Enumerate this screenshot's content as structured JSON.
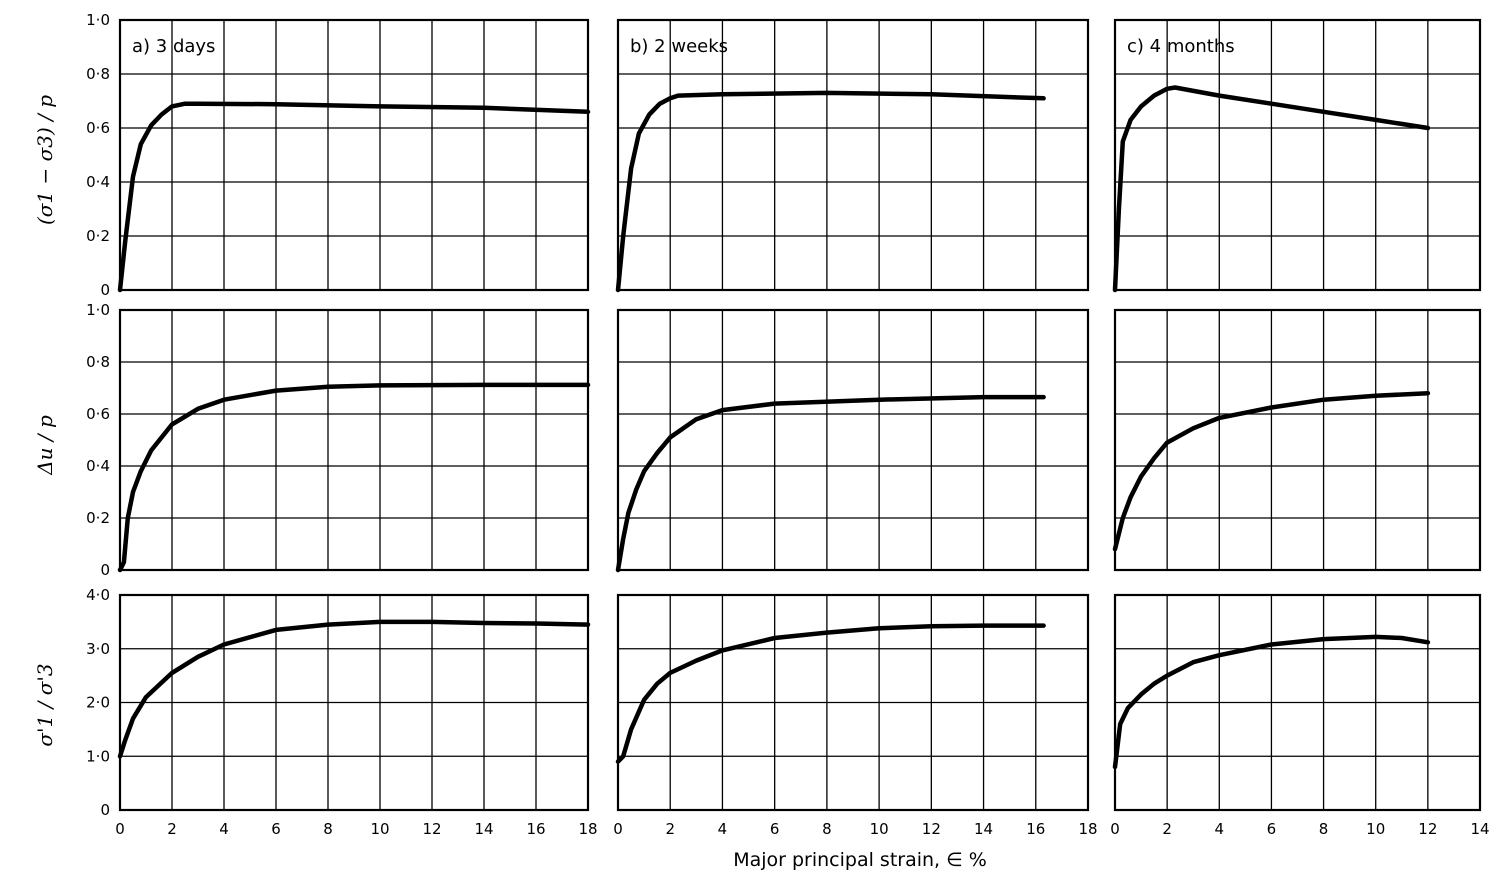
{
  "figure": {
    "xlabel": "Major principal strain, ∈ %",
    "row_labels": [
      "(σ1 − σ3) / p",
      "Δu / p",
      "σ'1 / σ'3"
    ],
    "column_titles": [
      "a)  3 days",
      "b)  2 weeks",
      "c)  4 months"
    ]
  },
  "chart_data": [
    {
      "type": "line",
      "row": 0,
      "col": 0,
      "title": "a)  3 days",
      "ylabel": "(σ1 − σ3) / p",
      "xlabel": "",
      "xlim": [
        0,
        18
      ],
      "ylim": [
        0,
        1.0
      ],
      "x_ticks": [
        0,
        2,
        4,
        6,
        8,
        10,
        12,
        14,
        16,
        18
      ],
      "y_ticks": [
        0,
        0.2,
        0.4,
        0.6,
        0.8,
        1.0
      ],
      "y_tick_labels": [
        "0",
        "0·2",
        "0·4",
        "0·6",
        "0·8",
        "1·0"
      ],
      "grid": true,
      "series": [
        {
          "x": [
            0,
            0.2,
            0.5,
            0.8,
            1.2,
            1.6,
            2.0,
            2.5,
            3,
            6,
            10,
            14,
            18
          ],
          "y": [
            0,
            0.18,
            0.42,
            0.54,
            0.61,
            0.65,
            0.68,
            0.69,
            0.69,
            0.688,
            0.68,
            0.675,
            0.66
          ]
        }
      ]
    },
    {
      "type": "line",
      "row": 0,
      "col": 1,
      "title": "b)  2 weeks",
      "ylabel": "",
      "xlabel": "",
      "xlim": [
        0,
        18
      ],
      "ylim": [
        0,
        1.0
      ],
      "x_ticks": [
        0,
        2,
        4,
        6,
        8,
        10,
        12,
        14,
        16,
        18
      ],
      "y_ticks": [
        0,
        0.2,
        0.4,
        0.6,
        0.8,
        1.0
      ],
      "y_tick_labels": [],
      "grid": true,
      "series": [
        {
          "x": [
            0,
            0.2,
            0.5,
            0.8,
            1.2,
            1.6,
            2.0,
            2.3,
            4,
            8,
            12,
            16.3
          ],
          "y": [
            0,
            0.2,
            0.45,
            0.58,
            0.65,
            0.69,
            0.71,
            0.72,
            0.725,
            0.73,
            0.725,
            0.71
          ]
        }
      ]
    },
    {
      "type": "line",
      "row": 0,
      "col": 2,
      "title": "c)  4 months",
      "ylabel": "",
      "xlabel": "",
      "xlim": [
        0,
        14
      ],
      "ylim": [
        0,
        1.0
      ],
      "x_ticks": [
        0,
        2,
        4,
        6,
        8,
        10,
        12,
        14
      ],
      "y_ticks": [
        0,
        0.2,
        0.4,
        0.6,
        0.8,
        1.0
      ],
      "y_tick_labels": [],
      "grid": true,
      "series": [
        {
          "x": [
            0,
            0.15,
            0.3,
            0.6,
            1.0,
            1.5,
            2.0,
            2.3,
            4,
            6,
            8,
            10,
            12
          ],
          "y": [
            0,
            0.3,
            0.55,
            0.63,
            0.68,
            0.72,
            0.745,
            0.75,
            0.72,
            0.69,
            0.66,
            0.63,
            0.6
          ]
        }
      ]
    },
    {
      "type": "line",
      "row": 1,
      "col": 0,
      "title": "",
      "ylabel": "Δu / p",
      "xlabel": "",
      "xlim": [
        0,
        18
      ],
      "ylim": [
        0,
        1.0
      ],
      "x_ticks": [
        0,
        2,
        4,
        6,
        8,
        10,
        12,
        14,
        16,
        18
      ],
      "y_ticks": [
        0,
        0.2,
        0.4,
        0.6,
        0.8,
        1.0
      ],
      "y_tick_labels": [
        "0",
        "0·2",
        "0·4",
        "0·6",
        "0·8",
        "1·0"
      ],
      "grid": true,
      "series": [
        {
          "x": [
            0,
            0.15,
            0.3,
            0.5,
            0.8,
            1.2,
            2.0,
            3,
            4,
            6,
            8,
            10,
            14,
            18
          ],
          "y": [
            0,
            0.03,
            0.2,
            0.3,
            0.38,
            0.46,
            0.56,
            0.62,
            0.655,
            0.69,
            0.705,
            0.71,
            0.712,
            0.712
          ]
        }
      ]
    },
    {
      "type": "line",
      "row": 1,
      "col": 1,
      "title": "",
      "ylabel": "",
      "xlabel": "",
      "xlim": [
        0,
        18
      ],
      "ylim": [
        0,
        1.0
      ],
      "x_ticks": [
        0,
        2,
        4,
        6,
        8,
        10,
        12,
        14,
        16,
        18
      ],
      "y_ticks": [
        0,
        0.2,
        0.4,
        0.6,
        0.8,
        1.0
      ],
      "y_tick_labels": [],
      "grid": true,
      "series": [
        {
          "x": [
            0,
            0.2,
            0.4,
            0.7,
            1.0,
            1.5,
            2.0,
            3,
            4,
            6,
            10,
            14,
            16.3
          ],
          "y": [
            0,
            0.12,
            0.22,
            0.31,
            0.38,
            0.45,
            0.51,
            0.58,
            0.615,
            0.64,
            0.655,
            0.665,
            0.665
          ]
        }
      ]
    },
    {
      "type": "line",
      "row": 1,
      "col": 2,
      "title": "",
      "ylabel": "",
      "xlabel": "",
      "xlim": [
        0,
        14
      ],
      "ylim": [
        0,
        1.0
      ],
      "x_ticks": [
        0,
        2,
        4,
        6,
        8,
        10,
        12,
        14
      ],
      "y_ticks": [
        0,
        0.2,
        0.4,
        0.6,
        0.8,
        1.0
      ],
      "y_tick_labels": [],
      "grid": true,
      "series": [
        {
          "x": [
            0,
            0.1,
            0.3,
            0.6,
            1.0,
            1.5,
            2.0,
            3,
            4,
            6,
            8,
            10,
            12
          ],
          "y": [
            0.08,
            0.12,
            0.2,
            0.28,
            0.36,
            0.43,
            0.49,
            0.545,
            0.585,
            0.625,
            0.655,
            0.67,
            0.68
          ]
        }
      ]
    },
    {
      "type": "line",
      "row": 2,
      "col": 0,
      "title": "",
      "ylabel": "σ'1 / σ'3",
      "xlabel": "",
      "xlim": [
        0,
        18
      ],
      "ylim": [
        0,
        4.0
      ],
      "x_ticks": [
        0,
        2,
        4,
        6,
        8,
        10,
        12,
        14,
        16,
        18
      ],
      "x_tick_labels": [
        "0",
        "2",
        "4",
        "6",
        "8",
        "10",
        "12",
        "14",
        "16",
        "18"
      ],
      "y_ticks": [
        0,
        1.0,
        2.0,
        3.0,
        4.0
      ],
      "y_tick_labels": [
        "0",
        "1·0",
        "2·0",
        "3·0",
        "4·0"
      ],
      "grid": true,
      "series": [
        {
          "x": [
            0,
            0.2,
            0.5,
            1.0,
            2.0,
            3,
            4,
            6,
            8,
            10,
            12,
            14,
            16,
            18
          ],
          "y": [
            1.0,
            1.3,
            1.7,
            2.1,
            2.55,
            2.85,
            3.08,
            3.35,
            3.45,
            3.5,
            3.5,
            3.48,
            3.47,
            3.45
          ]
        }
      ]
    },
    {
      "type": "line",
      "row": 2,
      "col": 1,
      "title": "",
      "ylabel": "",
      "xlabel": "",
      "xlim": [
        0,
        18
      ],
      "ylim": [
        0,
        4.0
      ],
      "x_ticks": [
        0,
        2,
        4,
        6,
        8,
        10,
        12,
        14,
        16,
        18
      ],
      "x_tick_labels": [
        "0",
        "2",
        "4",
        "6",
        "8",
        "10",
        "12",
        "14",
        "16",
        "18"
      ],
      "y_ticks": [
        0,
        1.0,
        2.0,
        3.0,
        4.0
      ],
      "y_tick_labels": [],
      "grid": true,
      "series": [
        {
          "x": [
            0,
            0.2,
            0.5,
            1.0,
            1.5,
            2.0,
            3,
            4,
            6,
            8,
            10,
            12,
            14,
            16.3
          ],
          "y": [
            0.9,
            1.0,
            1.5,
            2.05,
            2.35,
            2.55,
            2.78,
            2.97,
            3.2,
            3.3,
            3.38,
            3.42,
            3.43,
            3.43
          ]
        }
      ]
    },
    {
      "type": "line",
      "row": 2,
      "col": 2,
      "title": "",
      "ylabel": "",
      "xlabel": "",
      "xlim": [
        0,
        14
      ],
      "ylim": [
        0,
        4.0
      ],
      "x_ticks": [
        0,
        2,
        4,
        6,
        8,
        10,
        12,
        14
      ],
      "x_tick_labels": [
        "0",
        "2",
        "4",
        "6",
        "8",
        "10",
        "12",
        "14"
      ],
      "y_ticks": [
        0,
        1.0,
        2.0,
        3.0,
        4.0
      ],
      "y_tick_labels": [],
      "grid": true,
      "series": [
        {
          "x": [
            0,
            0.2,
            0.5,
            1.0,
            1.5,
            2.0,
            3,
            4,
            6,
            8,
            10,
            11,
            12
          ],
          "y": [
            0.8,
            1.6,
            1.9,
            2.15,
            2.35,
            2.5,
            2.75,
            2.88,
            3.08,
            3.18,
            3.22,
            3.2,
            3.12
          ]
        }
      ]
    }
  ]
}
